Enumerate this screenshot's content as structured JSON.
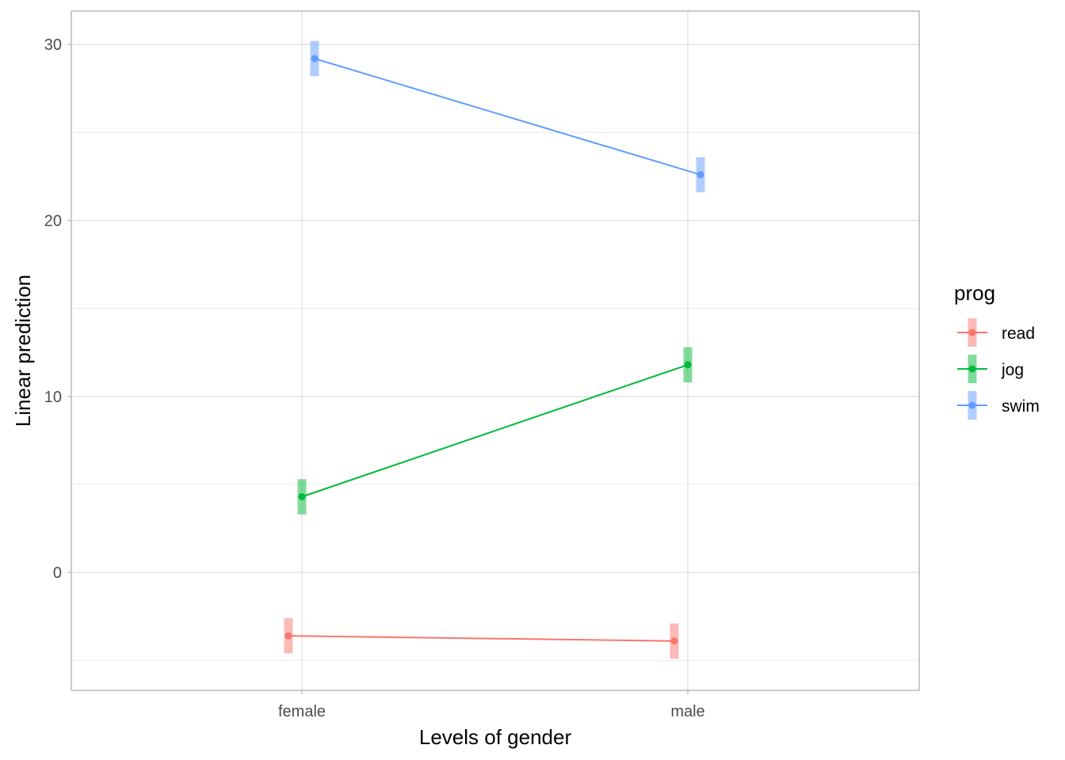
{
  "chart_data": {
    "type": "line",
    "title": "",
    "xlabel": "Levels of gender",
    "ylabel": "Linear prediction",
    "categories": [
      "female",
      "male"
    ],
    "ylim": [
      -6.7,
      31.9
    ],
    "yticks": [
      0,
      10,
      20,
      30
    ],
    "grid": true,
    "legend": {
      "title": "prog",
      "placement": "right"
    },
    "series": [
      {
        "name": "read",
        "color": "#F8766D",
        "values": [
          -3.6,
          -3.9
        ],
        "ci_low": [
          -4.6,
          -4.9
        ],
        "ci_high": [
          -2.6,
          -2.9
        ]
      },
      {
        "name": "jog",
        "color": "#00BA38",
        "values": [
          4.3,
          11.8
        ],
        "ci_low": [
          3.3,
          10.8
        ],
        "ci_high": [
          5.3,
          12.8
        ]
      },
      {
        "name": "swim",
        "color": "#619CFF",
        "values": [
          29.2,
          22.6
        ],
        "ci_low": [
          28.2,
          21.6
        ],
        "ci_high": [
          30.2,
          23.6
        ]
      }
    ]
  }
}
